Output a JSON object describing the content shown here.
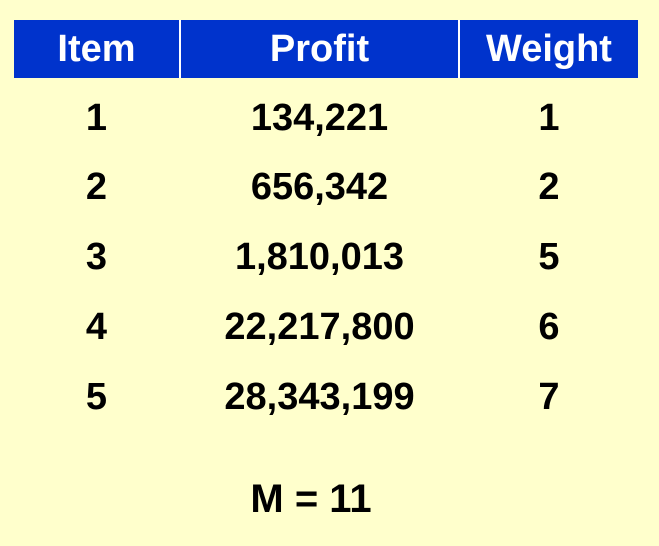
{
  "table": {
    "headers": [
      "Item",
      "Profit",
      "Weight"
    ],
    "rows": [
      [
        "1",
        "134,221",
        "1"
      ],
      [
        "2",
        "656,342",
        "2"
      ],
      [
        "3",
        "1,810,013",
        "5"
      ],
      [
        "4",
        "22,217,800",
        "6"
      ],
      [
        "5",
        "28,343,199",
        "7"
      ]
    ]
  },
  "capacity": "M = 11",
  "colors": {
    "background": "#ffffcc",
    "header_bg": "#0033cc",
    "header_text": "#ffffff",
    "text": "#000000"
  }
}
